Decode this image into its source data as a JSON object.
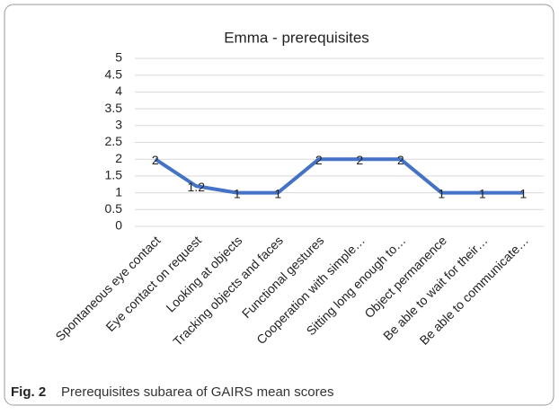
{
  "chart_data": {
    "type": "line",
    "title": "Emma - prerequisites",
    "categories": [
      "Spontaneous eye contact",
      "Eye contact on request",
      "Looking at objects",
      "Tracking objects and faces",
      "Functional gestures",
      "Cooperation with simple…",
      "Sitting long enough to…",
      "Object permanence",
      "Be able to wait for their…",
      "Be able to communicate…"
    ],
    "values": [
      2,
      1.2,
      1,
      1,
      2,
      2,
      2,
      1,
      1,
      1
    ],
    "color": "#4472c4",
    "ylim": [
      0,
      5
    ],
    "yticks": [
      0,
      0.5,
      1,
      1.5,
      2,
      2.5,
      3,
      3.5,
      4,
      4.5,
      5
    ],
    "grid": true
  },
  "caption": {
    "label": "Fig. 2",
    "text": "Prerequisites subarea of GAIRS mean scores"
  }
}
